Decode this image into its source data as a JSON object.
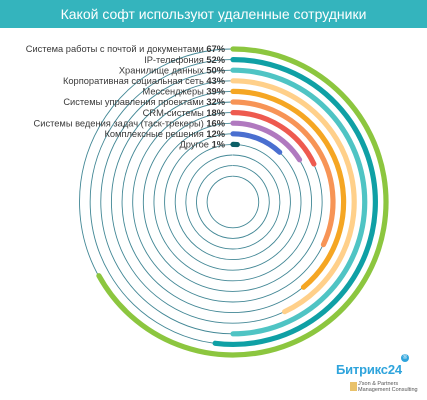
{
  "title": "Какой софт используют удаленные сотрудники",
  "chart_data": {
    "type": "radial-bar",
    "title": "Какой софт используют удаленные сотрудники",
    "value_range": [
      0,
      100
    ],
    "series": [
      {
        "label": "Система работы с почтой и документами",
        "pct_label": "67%",
        "value": 67,
        "color": "#8cc63f"
      },
      {
        "label": "IP-телефония",
        "pct_label": "52%",
        "value": 52,
        "color": "#0fa0a5"
      },
      {
        "label": "Хранилище данных",
        "pct_label": "50%",
        "value": 50,
        "color": "#4fc4c4"
      },
      {
        "label": "Корпоративная социальная сеть",
        "pct_label": "43%",
        "value": 43,
        "color": "#ffd08a"
      },
      {
        "label": "Мессенджеры",
        "pct_label": "39%",
        "value": 39,
        "color": "#f5a623"
      },
      {
        "label": "Системы управления проектами",
        "pct_label": "32%",
        "value": 32,
        "color": "#f79456"
      },
      {
        "label": "CRM-системы",
        "pct_label": "18%",
        "value": 18,
        "color": "#ee5a4f"
      },
      {
        "label": "Системы ведения задач (таск-трекеры)",
        "pct_label": "16%",
        "value": 16,
        "color": "#b079bf"
      },
      {
        "label": "Комплексные решения",
        "pct_label": "12%",
        "value": 12,
        "color": "#4a6fd0"
      },
      {
        "label": "Другое",
        "pct_label": "1%",
        "value": 1,
        "color": "#0c5f66"
      }
    ],
    "track_color": "#2e7a8a"
  },
  "logo": {
    "brand": "Битрикс",
    "number": "24",
    "badge": "®"
  },
  "partner": {
    "line1": "J'son & Partners",
    "line2": "Management Consulting"
  }
}
